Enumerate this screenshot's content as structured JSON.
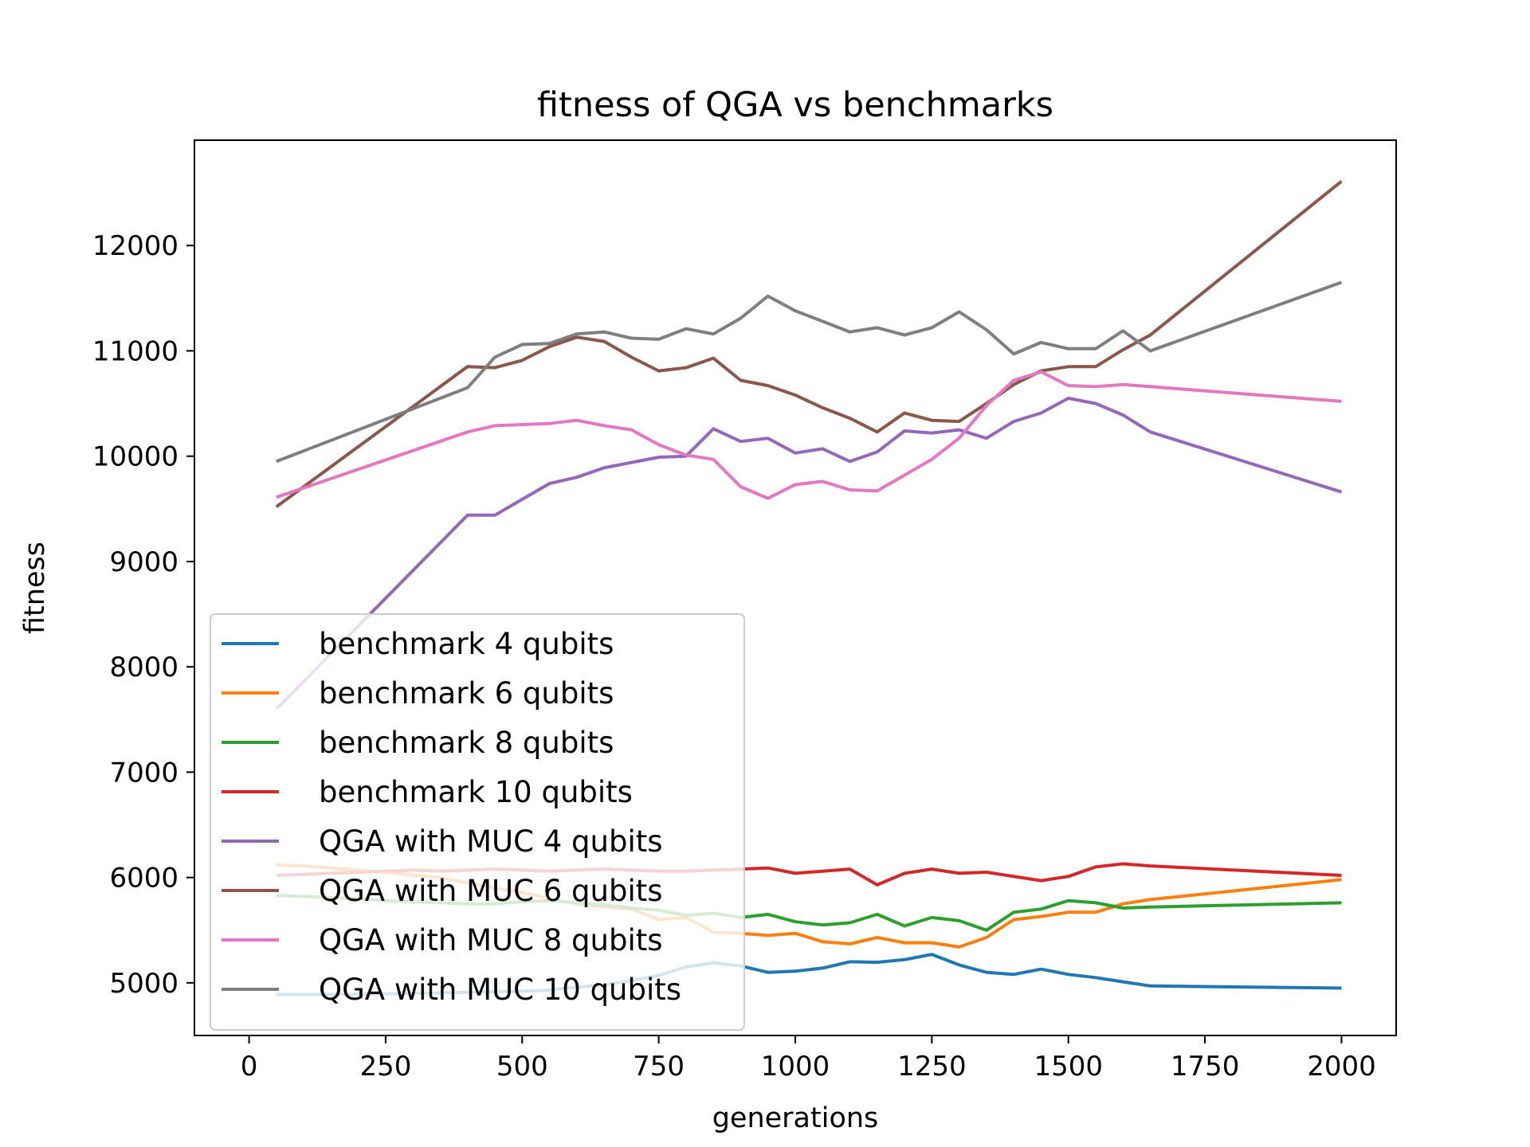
{
  "chart_data": {
    "type": "line",
    "title": "fitness of QGA vs benchmarks",
    "xlabel": "generations",
    "ylabel": "fitness",
    "xlim": [
      -100,
      2100
    ],
    "ylim": [
      4500,
      13000
    ],
    "xticks": [
      0,
      250,
      500,
      750,
      1000,
      1250,
      1500,
      1750,
      2000
    ],
    "yticks": [
      5000,
      6000,
      7000,
      8000,
      9000,
      10000,
      11000,
      12000
    ],
    "grid": false,
    "legend_position": "lower-left",
    "x": [
      50,
      100,
      150,
      200,
      250,
      300,
      350,
      400,
      450,
      500,
      550,
      600,
      650,
      700,
      750,
      800,
      850,
      900,
      950,
      1000,
      1050,
      1100,
      1150,
      1200,
      1250,
      1300,
      1350,
      1400,
      1450,
      1500,
      1550,
      1600,
      1650,
      2000
    ],
    "series": [
      {
        "name": "benchmark 4 qubits",
        "color": "#1f77b4",
        "x": [
          50,
          100,
          200,
          300,
          400,
          500,
          550,
          600,
          650,
          700,
          750,
          800,
          850,
          900,
          950,
          1000,
          1050,
          1100,
          1150,
          1200,
          1250,
          1300,
          1350,
          1400,
          1450,
          1500,
          1550,
          1600,
          1650,
          2000
        ],
        "values": [
          4890,
          4890,
          4890,
          4900,
          4910,
          4920,
          4930,
          4960,
          4980,
          5020,
          5070,
          5150,
          5190,
          5160,
          5100,
          5110,
          5140,
          5200,
          5195,
          5220,
          5270,
          5170,
          5100,
          5080,
          5130,
          5080,
          5050,
          5010,
          4970,
          4950
        ]
      },
      {
        "name": "benchmark 6 qubits",
        "color": "#ff7f0e",
        "x": [
          50,
          100,
          150,
          200,
          250,
          300,
          350,
          400,
          450,
          500,
          550,
          600,
          650,
          700,
          750,
          800,
          850,
          900,
          950,
          1000,
          1050,
          1100,
          1150,
          1200,
          1250,
          1300,
          1350,
          1400,
          1450,
          1500,
          1550,
          1600,
          1650,
          2000
        ],
        "values": [
          6120,
          6110,
          6090,
          6070,
          6050,
          6020,
          6000,
          5950,
          5900,
          5860,
          5800,
          5750,
          5720,
          5700,
          5600,
          5620,
          5480,
          5470,
          5450,
          5470,
          5390,
          5370,
          5430,
          5380,
          5380,
          5340,
          5430,
          5600,
          5630,
          5670,
          5670,
          5750,
          5790,
          5980
        ]
      },
      {
        "name": "benchmark 8 qubits",
        "color": "#2ca02c",
        "x": [
          50,
          100,
          150,
          200,
          250,
          300,
          350,
          400,
          450,
          500,
          550,
          600,
          650,
          700,
          750,
          800,
          850,
          900,
          950,
          1000,
          1050,
          1100,
          1150,
          1200,
          1250,
          1300,
          1350,
          1400,
          1450,
          1500,
          1550,
          1600,
          1650,
          2000
        ],
        "values": [
          5830,
          5820,
          5810,
          5800,
          5780,
          5770,
          5760,
          5750,
          5750,
          5770,
          5780,
          5760,
          5740,
          5710,
          5690,
          5640,
          5660,
          5620,
          5650,
          5580,
          5550,
          5570,
          5650,
          5540,
          5620,
          5590,
          5500,
          5670,
          5700,
          5780,
          5760,
          5710,
          5720,
          5760
        ]
      },
      {
        "name": "benchmark 10 qubits",
        "color": "#d62728",
        "x": [
          50,
          100,
          150,
          200,
          250,
          300,
          350,
          400,
          450,
          500,
          550,
          600,
          650,
          700,
          750,
          800,
          850,
          900,
          950,
          1000,
          1050,
          1100,
          1150,
          1200,
          1250,
          1300,
          1350,
          1400,
          1450,
          1500,
          1550,
          1600,
          1650,
          2000
        ],
        "values": [
          6020,
          6030,
          6040,
          6050,
          6060,
          6070,
          6060,
          6070,
          6080,
          6070,
          6060,
          6070,
          6080,
          6070,
          6060,
          6060,
          6070,
          6080,
          6090,
          6040,
          6060,
          6080,
          5930,
          6040,
          6080,
          6040,
          6050,
          6010,
          5970,
          6010,
          6100,
          6130,
          6110,
          6020
        ]
      },
      {
        "name": "QGA with MUC 4 qubits",
        "color": "#9467bd",
        "x": [
          50,
          400,
          450,
          500,
          550,
          600,
          650,
          700,
          750,
          800,
          850,
          900,
          950,
          1000,
          1050,
          1100,
          1150,
          1200,
          1250,
          1300,
          1350,
          1400,
          1450,
          1500,
          1550,
          1600,
          1650,
          2000
        ],
        "values": [
          7600,
          9440,
          9440,
          9590,
          9740,
          9800,
          9890,
          9940,
          9990,
          10000,
          10260,
          10140,
          10170,
          10030,
          10070,
          9950,
          10040,
          10240,
          10220,
          10250,
          10170,
          10330,
          10410,
          10550,
          10500,
          10390,
          10230,
          9660
        ]
      },
      {
        "name": "QGA with MUC 6 qubits",
        "color": "#8c564b",
        "x": [
          50,
          400,
          450,
          500,
          550,
          600,
          650,
          700,
          750,
          800,
          850,
          900,
          950,
          1000,
          1050,
          1100,
          1150,
          1200,
          1250,
          1300,
          1350,
          1400,
          1450,
          1500,
          1550,
          1600,
          1650,
          2000
        ],
        "values": [
          9520,
          10850,
          10840,
          10910,
          11040,
          11130,
          11090,
          10940,
          10810,
          10840,
          10930,
          10720,
          10670,
          10580,
          10460,
          10360,
          10230,
          10410,
          10340,
          10330,
          10500,
          10680,
          10810,
          10850,
          10850,
          11010,
          11150,
          12610
        ]
      },
      {
        "name": "QGA with MUC 8 qubits",
        "color": "#e377c2",
        "x": [
          50,
          400,
          450,
          500,
          550,
          600,
          650,
          700,
          750,
          800,
          850,
          900,
          950,
          1000,
          1050,
          1100,
          1150,
          1200,
          1250,
          1300,
          1350,
          1400,
          1450,
          1500,
          1550,
          1600,
          1650,
          2000
        ],
        "values": [
          9610,
          10230,
          10290,
          10300,
          10310,
          10340,
          10290,
          10250,
          10110,
          10010,
          9970,
          9710,
          9600,
          9730,
          9760,
          9680,
          9670,
          9820,
          9970,
          10170,
          10480,
          10720,
          10800,
          10670,
          10660,
          10680,
          10660,
          10520
        ]
      },
      {
        "name": "QGA with MUC 10 qubits",
        "color": "#7f7f7f",
        "x": [
          50,
          400,
          450,
          500,
          550,
          600,
          650,
          700,
          750,
          800,
          850,
          900,
          950,
          1000,
          1050,
          1100,
          1150,
          1200,
          1250,
          1300,
          1350,
          1400,
          1450,
          1500,
          1550,
          1600,
          1650,
          2000
        ],
        "values": [
          9950,
          10650,
          10940,
          11060,
          11070,
          11160,
          11180,
          11120,
          11110,
          11210,
          11160,
          11310,
          11520,
          11380,
          11280,
          11180,
          11220,
          11150,
          11220,
          11370,
          11200,
          10970,
          11080,
          11020,
          11020,
          11190,
          11000,
          11650
        ]
      }
    ]
  }
}
